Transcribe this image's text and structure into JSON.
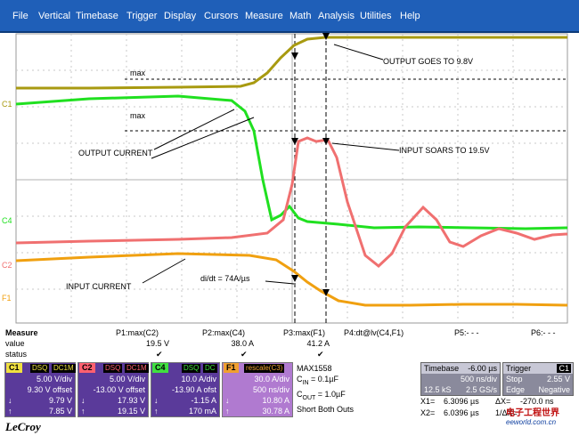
{
  "menu": [
    "File",
    "Vertical",
    "Timebase",
    "Trigger",
    "Display",
    "Cursors",
    "Measure",
    "Math",
    "Analysis",
    "Utilities",
    "Help"
  ],
  "scope": {
    "channel_markers": [
      "C1",
      "C4",
      "C2",
      "F1"
    ],
    "max_labels": [
      "max",
      "max"
    ],
    "annotations": {
      "output_goes": "OUTPUT GOES TO 9.8V",
      "output_current": "OUTPUT CURRENT",
      "input_soars": "INPUT SOARS TO 19.5V",
      "input_current": "INPUT CURRENT",
      "didt": "di/dt = 74A/µs"
    }
  },
  "measure": {
    "header": "Measure",
    "row_labels": [
      "value",
      "status"
    ],
    "params": [
      {
        "name": "P1:max(C2)",
        "value": "19.5 V",
        "status": "✔"
      },
      {
        "name": "P2:max(C4)",
        "value": "38.0 A",
        "status": "✔"
      },
      {
        "name": "P3:max(F1)",
        "value": "41.2 A",
        "status": "✔"
      },
      {
        "name": "P4:dt@lv(C4,F1)",
        "value": "",
        "status": ""
      },
      {
        "name": "P5:- - -",
        "value": "",
        "status": ""
      },
      {
        "name": "P6:- - -",
        "value": "",
        "status": ""
      }
    ]
  },
  "channels": [
    {
      "tag": "C1",
      "badges": [
        "DSQ",
        "DC1M"
      ],
      "rows": [
        [
          "",
          "5.00 V/div"
        ],
        [
          "",
          "9.30 V offset"
        ],
        [
          "↓",
          "9.79 V"
        ],
        [
          "↑",
          "7.85 V"
        ]
      ],
      "color": "#5a3a9a",
      "tag_color": "#f0e040"
    },
    {
      "tag": "C2",
      "badges": [
        "DSQ",
        "DC1M"
      ],
      "rows": [
        [
          "",
          "5.00 V/div"
        ],
        [
          "",
          "-13.00 V offset"
        ],
        [
          "↓",
          "17.93 V"
        ],
        [
          "↑",
          "19.15 V"
        ]
      ],
      "color": "#5a3a9a",
      "tag_color": "#ff6070"
    },
    {
      "tag": "C4",
      "badges": [
        "DSQ",
        "DC"
      ],
      "rows": [
        [
          "",
          "10.0 A/div"
        ],
        [
          "",
          "-13.90 A ofst"
        ],
        [
          "↓",
          "-1.15 A"
        ],
        [
          "↑",
          "170 mA"
        ]
      ],
      "color": "#5a3a9a",
      "tag_color": "#40e040"
    },
    {
      "tag": "F1",
      "badges": [
        "rescale(C3)"
      ],
      "rows": [
        [
          "",
          "30.0 A/div"
        ],
        [
          "",
          "500 ns/div"
        ],
        [
          "↓",
          "10.80 A"
        ],
        [
          "↑",
          "30.78 A"
        ]
      ],
      "color": "#b07ad0",
      "tag_color": "#f0a030"
    }
  ],
  "annotation_block": {
    "part": "MAX1558",
    "cin_label": "C",
    "cin_sub": "IN",
    "cin_value": " = 0.1µF",
    "cout_label": "C",
    "cout_sub": "OUT",
    "cout_value": " = 1.0µF",
    "note": "Short Both Outs"
  },
  "timebase": {
    "label": "Timebase",
    "delay": "-6.00 µs",
    "div": "500 ns/div",
    "samples": "12.5 kS",
    "rate": "2.5 GS/s"
  },
  "trigger": {
    "label": "Trigger",
    "channel": "C1",
    "mode": "Stop",
    "level": "2.55 V",
    "slope_label": "Edge",
    "slope": "Negative"
  },
  "cursors": {
    "x1_label": "X1=",
    "x1": "6.3096 µs",
    "dx_label": "ΔX=",
    "dx": "-270.0 ns",
    "x2_label": "X2=",
    "x2": "6.0396 µs",
    "inv_label": "1/ΔX=",
    "inv": ""
  },
  "brand": "LeCroy",
  "watermark": {
    "line1": "电子工程世界",
    "line2": "eeworld.com.cn"
  },
  "colors": {
    "menubar": "#1f5fb8",
    "c1": "#a89a10",
    "c2": "#f07070",
    "c4": "#20e020",
    "f1": "#f0a010"
  }
}
